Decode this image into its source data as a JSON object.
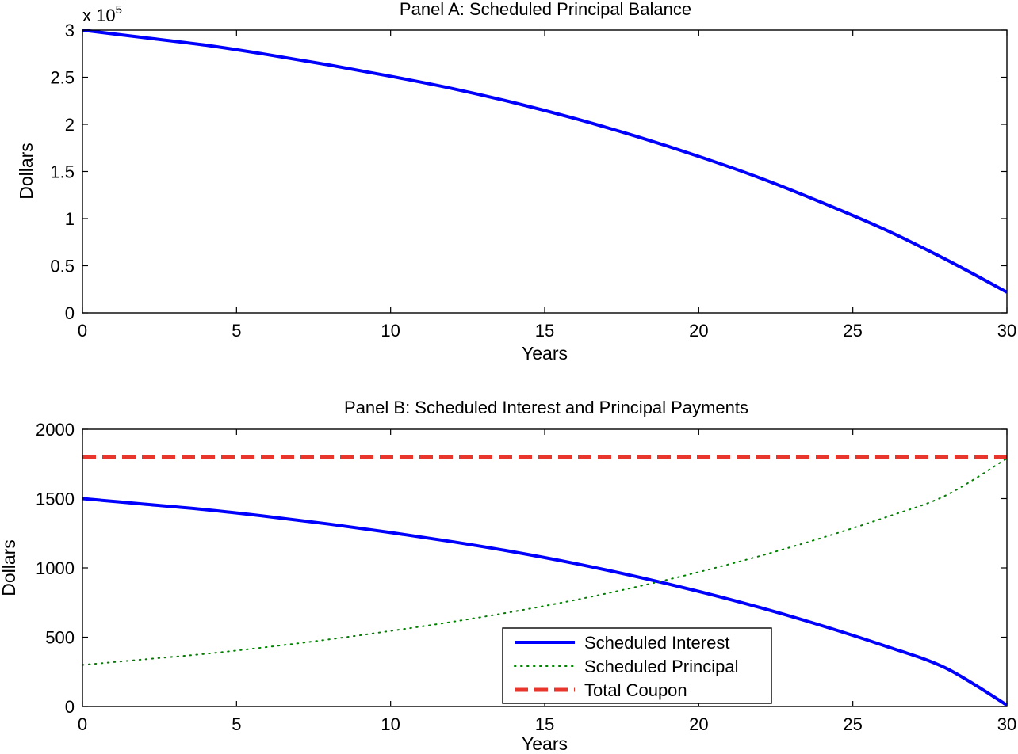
{
  "colors": {
    "interest": "#0000ff",
    "principal": "#007f00",
    "coupon": "#e8362d",
    "axis": "#000000",
    "background": "#ffffff"
  },
  "chart_data": [
    {
      "type": "line",
      "title": "Panel A: Scheduled Principal Balance",
      "xlabel": "Years",
      "ylabel": "Dollars",
      "y_multiplier_label": "x 10",
      "y_multiplier_exponent": "5",
      "xlim": [
        0,
        30
      ],
      "ylim": [
        0,
        3
      ],
      "xticks": [
        0,
        5,
        10,
        15,
        20,
        25,
        30
      ],
      "yticks": [
        0,
        0.5,
        1,
        1.5,
        2,
        2.5,
        3
      ],
      "x_tick_labels": [
        "0",
        "5",
        "10",
        "15",
        "20",
        "25",
        "30"
      ],
      "y_tick_labels": [
        "0",
        "0.5",
        "1",
        "1.5",
        "2",
        "2.5",
        "3"
      ],
      "grid": false,
      "series": [
        {
          "style": "solid",
          "color": "#0000ff",
          "x": [
            0,
            2,
            4,
            6,
            8,
            10,
            12,
            14,
            16,
            18,
            20,
            22,
            24,
            26,
            28,
            30
          ],
          "y": [
            3.0,
            2.92,
            2.84,
            2.74,
            2.63,
            2.51,
            2.38,
            2.23,
            2.06,
            1.87,
            1.66,
            1.43,
            1.17,
            0.89,
            0.57,
            0.22
          ]
        }
      ]
    },
    {
      "type": "line",
      "title": "Panel B: Scheduled Interest and Principal Payments",
      "xlabel": "Years",
      "ylabel": "Dollars",
      "xlim": [
        0,
        30
      ],
      "ylim": [
        0,
        2000
      ],
      "xticks": [
        0,
        5,
        10,
        15,
        20,
        25,
        30
      ],
      "yticks": [
        0,
        500,
        1000,
        1500,
        2000
      ],
      "x_tick_labels": [
        "0",
        "5",
        "10",
        "15",
        "20",
        "25",
        "30"
      ],
      "y_tick_labels": [
        "0",
        "500",
        "1000",
        "1500",
        "2000"
      ],
      "grid": false,
      "legend": {
        "position": "bottom-right",
        "entries": [
          "Scheduled Interest",
          "Scheduled Principal",
          "Total Coupon"
        ]
      },
      "series": [
        {
          "name": "Scheduled Interest",
          "style": "solid",
          "color": "#0000ff",
          "x": [
            0,
            2,
            4,
            6,
            8,
            10,
            12,
            14,
            16,
            18,
            20,
            22,
            24,
            26,
            28,
            30
          ],
          "y": [
            1500,
            1460,
            1420,
            1371,
            1316,
            1255,
            1189,
            1115,
            1031,
            936,
            830,
            713,
            583,
            440,
            279,
            10
          ]
        },
        {
          "name": "Scheduled Principal",
          "style": "dotted",
          "color": "#007f00",
          "x": [
            0,
            2,
            4,
            6,
            8,
            10,
            12,
            14,
            16,
            18,
            20,
            22,
            24,
            26,
            28,
            30
          ],
          "y": [
            300,
            340,
            380,
            429,
            484,
            545,
            611,
            685,
            769,
            864,
            970,
            1087,
            1217,
            1360,
            1521,
            1790
          ]
        },
        {
          "name": "Total Coupon",
          "style": "dashed",
          "color": "#e8362d",
          "x": [
            0,
            30
          ],
          "y": [
            1800,
            1800
          ]
        }
      ]
    }
  ]
}
